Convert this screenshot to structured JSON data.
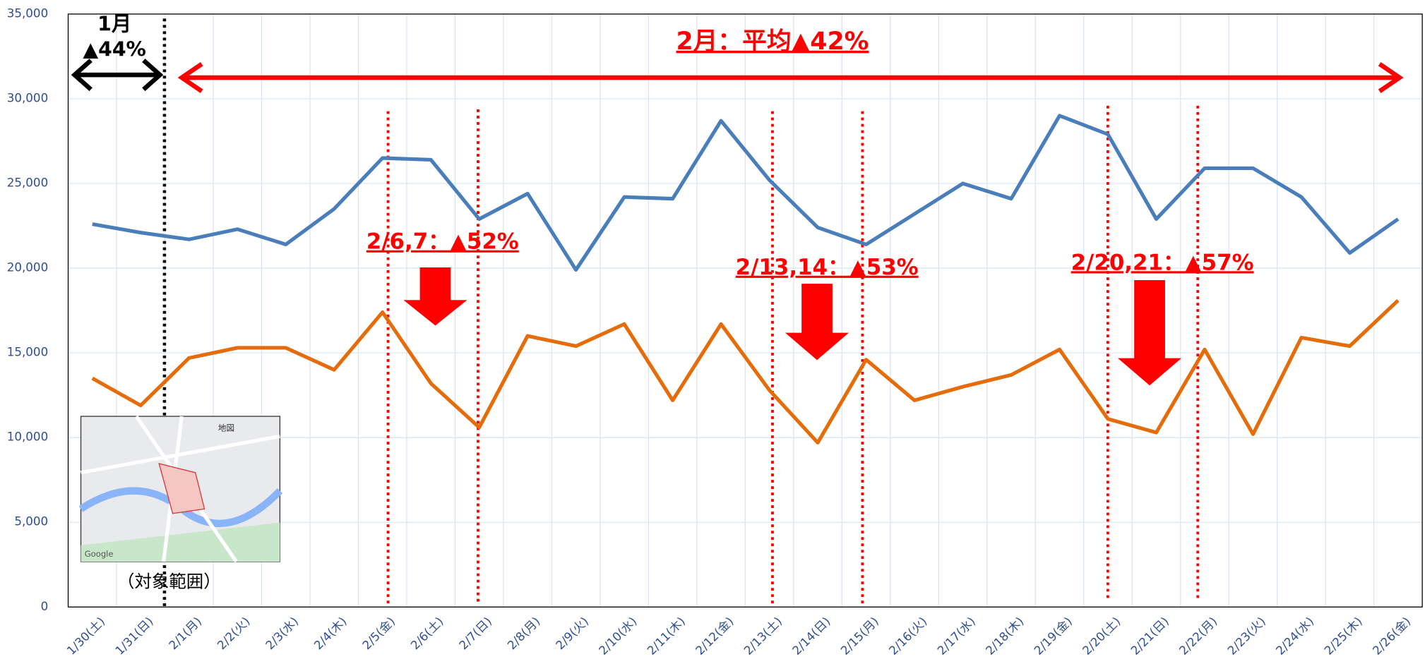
{
  "chart_data": {
    "type": "line",
    "categories": [
      "1/30(土)",
      "1/31(日)",
      "2/1(月)",
      "2/2(火)",
      "2/3(水)",
      "2/4(木)",
      "2/5(金)",
      "2/6(土)",
      "2/7(日)",
      "2/8(月)",
      "2/9(火)",
      "2/10(水)",
      "2/11(木)",
      "2/12(金)",
      "2/13(土)",
      "2/14(日)",
      "2/15(月)",
      "2/16(火)",
      "2/17(水)",
      "2/18(木)",
      "2/19(金)",
      "2/20(土)",
      "2/21(日)",
      "2/22(月)",
      "2/23(火)",
      "2/24(水)",
      "2/25(木)",
      "2/26(金)"
    ],
    "series": [
      {
        "color": "#4a7ebb",
        "values": [
          22600,
          22100,
          21700,
          22300,
          21400,
          23500,
          26500,
          26400,
          22900,
          24400,
          19900,
          24200,
          24100,
          28700,
          25200,
          22400,
          21400,
          23200,
          25000,
          24100,
          29000,
          27900,
          22900,
          25900,
          25900,
          24200,
          20900,
          22900
        ]
      },
      {
        "color": "#e46c0a",
        "values": [
          13500,
          11900,
          14700,
          15300,
          15300,
          14000,
          17400,
          13200,
          10600,
          16000,
          15400,
          16700,
          12200,
          16700,
          12800,
          9700,
          14600,
          12200,
          13000,
          13700,
          15200,
          11100,
          10300,
          15200,
          10200,
          15900,
          15400,
          18100
        ]
      }
    ],
    "ylim": [
      0,
      35000
    ],
    "yticks": [
      0,
      {
        "value": 5000,
        "label": "5,000"
      },
      {
        "value": 10000,
        "label": "10,000"
      },
      {
        "value": 15000,
        "label": "15,000"
      },
      {
        "value": 20000,
        "label": "20,000"
      },
      {
        "value": 25000,
        "label": "25,000"
      },
      {
        "value": 30000,
        "label": "30,000"
      },
      {
        "value": 35000,
        "label": "35,000"
      }
    ],
    "grid": true,
    "annotations": [
      "1月",
      "▲44%",
      "2月：平均▲42%",
      "2/6,7：▲52%",
      "2/13,14：▲53%",
      "2/20,21：▲57%",
      "（対象範囲）"
    ],
    "map_labels": [
      "地図",
      "Google"
    ]
  }
}
